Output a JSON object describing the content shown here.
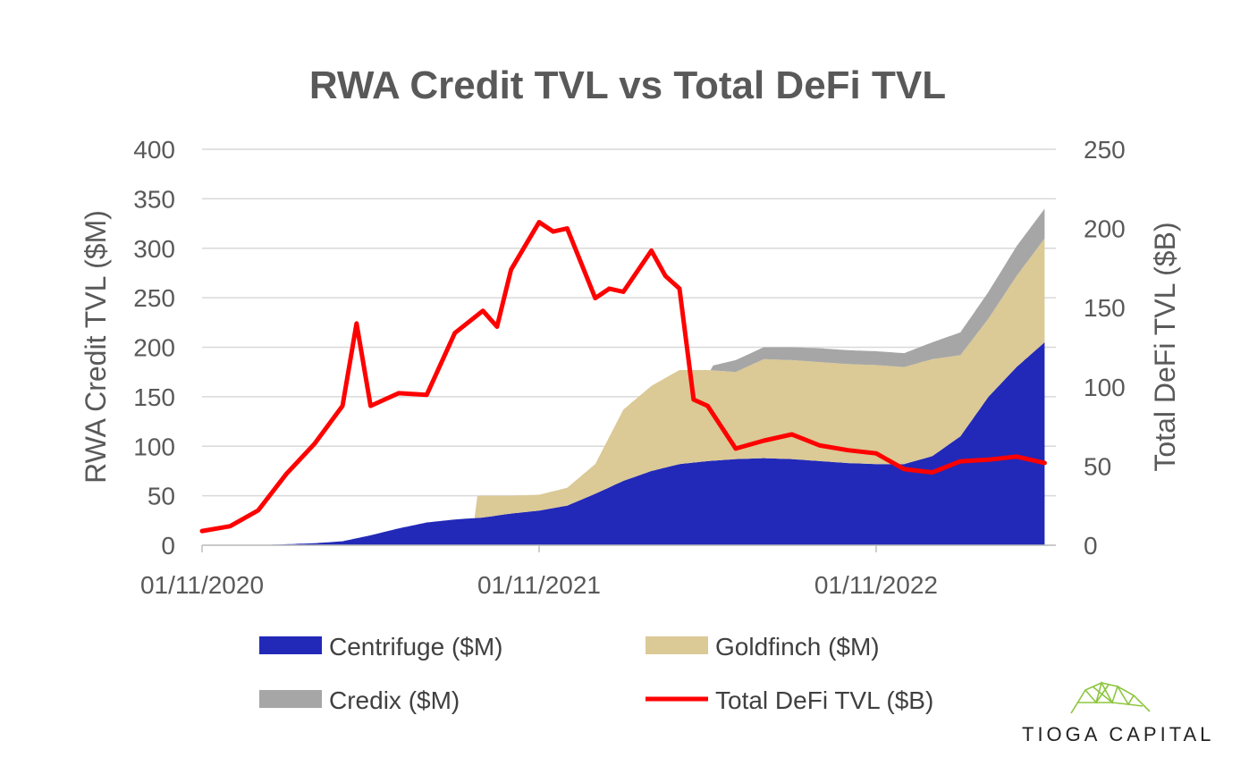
{
  "chart_data": {
    "type": "area",
    "title": "RWA Credit TVL vs Total DeFi TVL",
    "ylabel": "RWA Credit TVL ($M)",
    "y2label": "Total DeFi TVL ($B)",
    "ylim": [
      0,
      400
    ],
    "y2lim": [
      0,
      250
    ],
    "yticks": [
      "0",
      "50",
      "100",
      "150",
      "200",
      "250",
      "300",
      "350",
      "400"
    ],
    "y2ticks": [
      "0",
      "50",
      "100",
      "150",
      "200",
      "250"
    ],
    "xticks": [
      "01/11/2020",
      "01/11/2021",
      "01/11/2022"
    ],
    "x_months": [
      0,
      1,
      2,
      3,
      4,
      5,
      6,
      7,
      8,
      9,
      10,
      11,
      12,
      13,
      14,
      15,
      16,
      17,
      18,
      19,
      20,
      21,
      22,
      23,
      24,
      25,
      26,
      27,
      28,
      29,
      30
    ],
    "x_unit": "months since 01/11/2020",
    "grid": true,
    "legend_position": "bottom",
    "series": [
      {
        "name": "Centrifuge ($M)",
        "kind": "stacked-area",
        "color": "#2229B8",
        "x": [
          0,
          1,
          2,
          3,
          4,
          5,
          6,
          7,
          8,
          9,
          10,
          11,
          12,
          13,
          14,
          15,
          16,
          17,
          18,
          19,
          20,
          21,
          22,
          23,
          24,
          25,
          26,
          27,
          28,
          29,
          30
        ],
        "values": [
          0,
          0,
          0,
          1,
          2,
          4,
          10,
          17,
          23,
          26,
          28,
          32,
          35,
          40,
          52,
          65,
          75,
          82,
          85,
          87,
          88,
          87,
          85,
          83,
          82,
          82,
          90,
          110,
          150,
          180,
          205
        ]
      },
      {
        "name": "Goldfinch ($M)",
        "kind": "stacked-area",
        "color": "#DBC996",
        "x": [
          9.8,
          10,
          11,
          12,
          13,
          14,
          15,
          16,
          17,
          18,
          19,
          20,
          21,
          22,
          23,
          24,
          25,
          26,
          27,
          28,
          29,
          30
        ],
        "values": [
          22,
          22,
          18,
          16,
          18,
          30,
          72,
          86,
          95,
          92,
          88,
          100,
          100,
          100,
          100,
          100,
          98,
          98,
          82,
          79,
          92,
          105
        ]
      },
      {
        "name": "Credix ($M)",
        "kind": "stacked-area",
        "color": "#A6A6A6",
        "x": [
          18.2,
          19,
          20,
          21,
          22,
          23,
          24,
          25,
          26,
          27,
          28,
          29,
          30
        ],
        "values": [
          5,
          12,
          12,
          13,
          14,
          14,
          14,
          14,
          17,
          23,
          27,
          30,
          30
        ]
      },
      {
        "name": "Total DeFi TVL ($B)",
        "kind": "line",
        "axis": "right",
        "color": "#FF0000",
        "x": [
          0,
          1,
          2,
          3,
          4,
          5,
          5.5,
          6,
          7,
          8,
          9,
          10,
          10.5,
          11,
          12,
          12.5,
          13,
          14,
          14.5,
          15,
          16,
          16.5,
          17,
          17.5,
          18,
          19,
          20,
          21,
          22,
          23,
          24,
          25,
          26,
          27,
          28,
          29,
          30
        ],
        "values": [
          9,
          12,
          22,
          45,
          64,
          88,
          140,
          88,
          96,
          95,
          134,
          148,
          138,
          174,
          204,
          198,
          200,
          156,
          162,
          160,
          186,
          170,
          162,
          92,
          88,
          61,
          66,
          70,
          63,
          60,
          58,
          48,
          46,
          53,
          54,
          56,
          52
        ]
      }
    ]
  },
  "legend": [
    {
      "label": "Centrifuge ($M)",
      "color": "#2229B8",
      "swatch": "area"
    },
    {
      "label": "Goldfinch ($M)",
      "color": "#DBC996",
      "swatch": "area"
    },
    {
      "label": "Credix ($M)",
      "color": "#A6A6A6",
      "swatch": "area"
    },
    {
      "label": "Total DeFi TVL ($B)",
      "color": "#FF0000",
      "swatch": "line"
    }
  ],
  "brand": {
    "name": "TIOGA CAPITAL",
    "logo_icon": "mountain-wireframe-icon",
    "logo_color": "#8DC63F"
  }
}
